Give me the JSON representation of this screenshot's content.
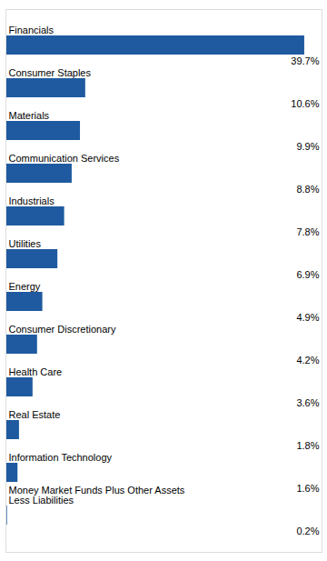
{
  "chart_data": {
    "type": "bar",
    "orientation": "horizontal",
    "categories": [
      "Financials",
      "Consumer Staples",
      "Materials",
      "Communication Services",
      "Industrials",
      "Utilities",
      "Energy",
      "Consumer Discretionary",
      "Health Care",
      "Real Estate",
      "Information Technology",
      "Money Market Funds Plus Other Assets\nLess Liabilities"
    ],
    "values": [
      39.7,
      10.6,
      9.9,
      8.8,
      7.8,
      6.9,
      4.9,
      4.2,
      3.6,
      1.8,
      1.6,
      0.2
    ],
    "value_labels": [
      "39.7%",
      "10.6%",
      "9.9%",
      "8.8%",
      "7.8%",
      "6.9%",
      "4.9%",
      "4.2%",
      "3.6%",
      "1.8%",
      "1.6%",
      "0.2%"
    ],
    "color": "#1f5aa0",
    "xlim": [
      0,
      42
    ],
    "data_labels": true,
    "tick_labels": false
  }
}
